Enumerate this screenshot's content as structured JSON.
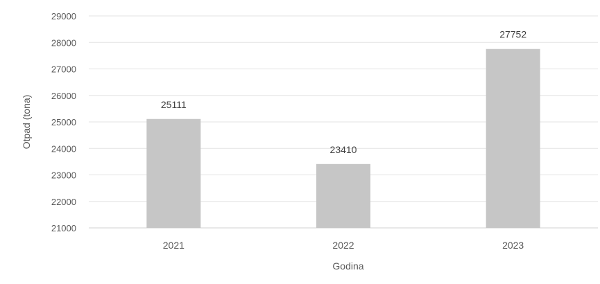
{
  "chart_data": {
    "type": "bar",
    "title": "",
    "xlabel": "Godina",
    "ylabel": "Otpad (tona)",
    "categories": [
      "2021",
      "2022",
      "2023"
    ],
    "values": [
      25111,
      23410,
      27752
    ],
    "data_labels": [
      "25111",
      "23410",
      "27752"
    ],
    "ylim": [
      21000,
      29000
    ],
    "yticks": [
      21000,
      22000,
      23000,
      24000,
      25000,
      26000,
      27000,
      28000,
      29000
    ],
    "ytick_labels": [
      "21000",
      "22000",
      "23000",
      "24000",
      "25000",
      "26000",
      "27000",
      "28000",
      "29000"
    ],
    "grid": true,
    "legend": "none",
    "colors": {
      "bar": "#c6c6c6",
      "grid": "#e3e3e3",
      "axis": "#d0d0d0",
      "text": "#595959"
    }
  }
}
